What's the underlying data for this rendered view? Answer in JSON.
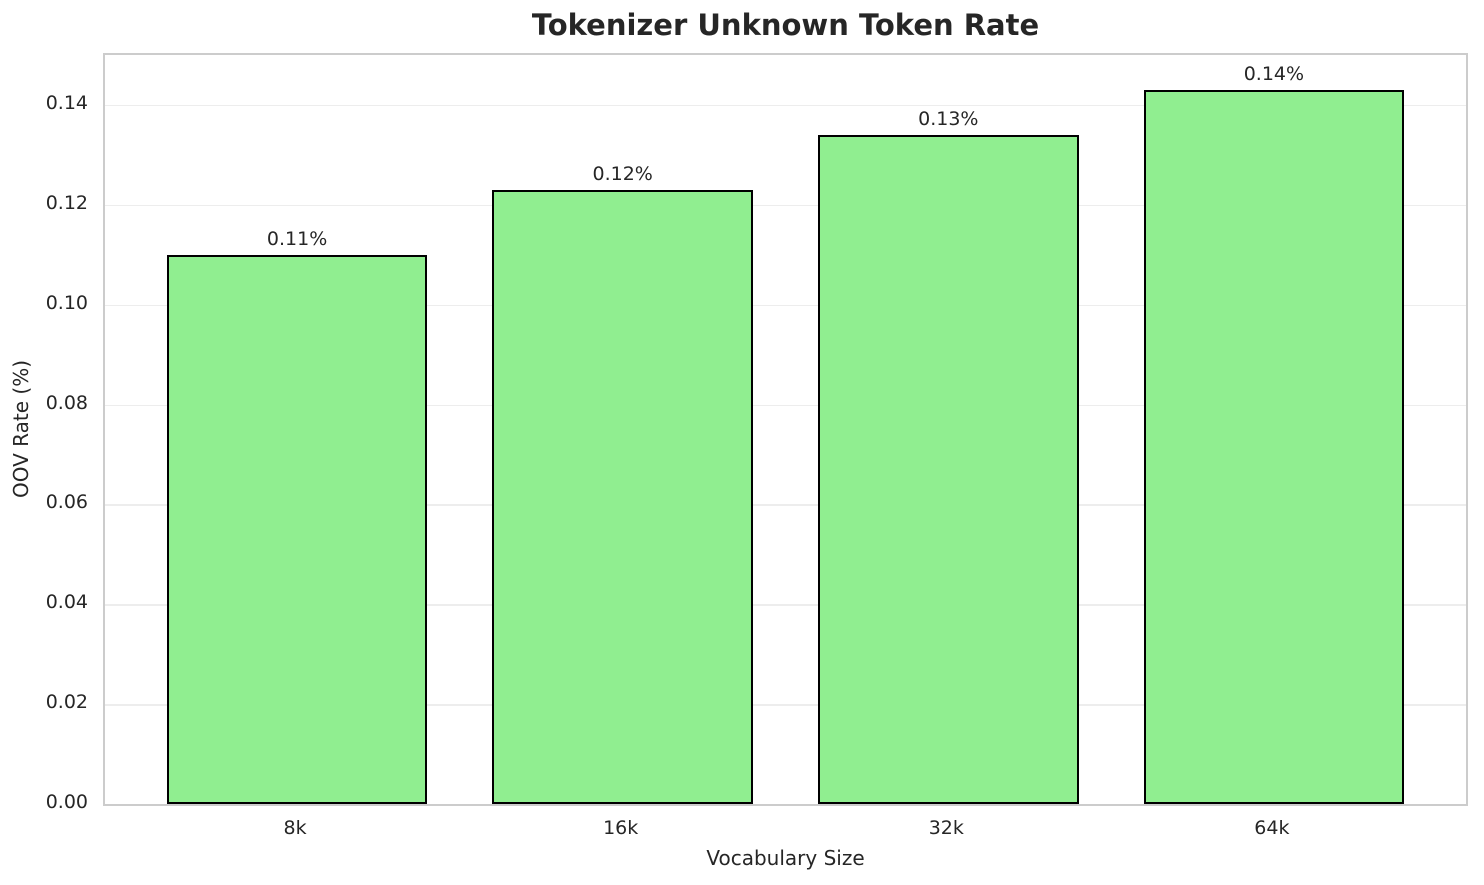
{
  "chart_data": {
    "type": "bar",
    "title": "Tokenizer Unknown Token Rate",
    "xlabel": "Vocabulary Size",
    "ylabel": "OOV Rate (%)",
    "categories": [
      "8k",
      "16k",
      "32k",
      "64k"
    ],
    "values": [
      0.11,
      0.123,
      0.134,
      0.143
    ],
    "bar_labels": [
      "0.11%",
      "0.12%",
      "0.13%",
      "0.14%"
    ],
    "ylim": [
      0,
      0.15
    ],
    "yticks": [
      0,
      0.02,
      0.04,
      0.06,
      0.08,
      0.1,
      0.12,
      0.14
    ],
    "ytick_labels": [
      "0.00",
      "0.02",
      "0.04",
      "0.06",
      "0.08",
      "0.10",
      "0.12",
      "0.14"
    ],
    "bar_width_fraction": 0.8,
    "x_margin": 0.59,
    "grid": true,
    "legend_position": "none",
    "colors": {
      "bar_fill": "#90EE90",
      "bar_edge": "#000000",
      "grid": "#EDEDED",
      "spine": "#CCCCCC",
      "text": "#262626",
      "background": "#FFFFFF"
    }
  }
}
